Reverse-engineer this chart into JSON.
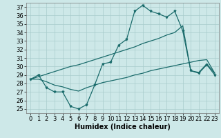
{
  "bg_color": "#cde8e8",
  "line_color": "#1a6b6b",
  "grid_color": "#a8cccc",
  "xlabel": "Humidex (Indice chaleur)",
  "xlim": [
    -0.5,
    23.5
  ],
  "ylim": [
    24.5,
    37.5
  ],
  "xticks": [
    0,
    1,
    2,
    3,
    4,
    5,
    6,
    7,
    8,
    9,
    10,
    11,
    12,
    13,
    14,
    15,
    16,
    17,
    18,
    19,
    20,
    21,
    22,
    23
  ],
  "yticks": [
    25,
    26,
    27,
    28,
    29,
    30,
    31,
    32,
    33,
    34,
    35,
    36,
    37
  ],
  "curve_x": [
    0,
    1,
    2,
    3,
    4,
    5,
    6,
    7,
    8,
    9,
    10,
    11,
    12,
    13,
    14,
    15,
    16,
    17,
    18,
    19,
    20,
    21,
    22,
    23
  ],
  "curve_y": [
    28.5,
    29.0,
    27.5,
    27.0,
    27.0,
    25.3,
    25.0,
    25.5,
    27.8,
    30.3,
    30.5,
    32.5,
    33.2,
    36.5,
    37.2,
    36.5,
    36.2,
    35.8,
    36.5,
    34.2,
    29.5,
    29.2,
    30.2,
    29.0
  ],
  "upper_x": [
    0,
    1,
    2,
    3,
    4,
    5,
    6,
    7,
    8,
    9,
    10,
    11,
    12,
    13,
    14,
    15,
    16,
    17,
    18,
    19,
    20,
    21,
    22,
    23
  ],
  "upper_y": [
    28.5,
    28.8,
    29.1,
    29.4,
    29.7,
    30.0,
    30.2,
    30.5,
    30.8,
    31.1,
    31.4,
    31.7,
    32.0,
    32.3,
    32.7,
    33.0,
    33.3,
    33.7,
    34.0,
    34.8,
    29.5,
    29.3,
    30.3,
    29.2
  ],
  "lower_x": [
    0,
    1,
    2,
    3,
    4,
    5,
    6,
    7,
    8,
    9,
    10,
    11,
    12,
    13,
    14,
    15,
    16,
    17,
    18,
    19,
    20,
    21,
    22,
    23
  ],
  "lower_y": [
    28.5,
    28.5,
    28.2,
    27.8,
    27.6,
    27.3,
    27.1,
    27.5,
    27.8,
    28.1,
    28.3,
    28.5,
    28.7,
    29.0,
    29.2,
    29.5,
    29.7,
    29.9,
    30.1,
    30.3,
    30.5,
    30.7,
    30.8,
    29.2
  ],
  "tick_fontsize": 6,
  "xlabel_fontsize": 7,
  "lw": 0.9
}
